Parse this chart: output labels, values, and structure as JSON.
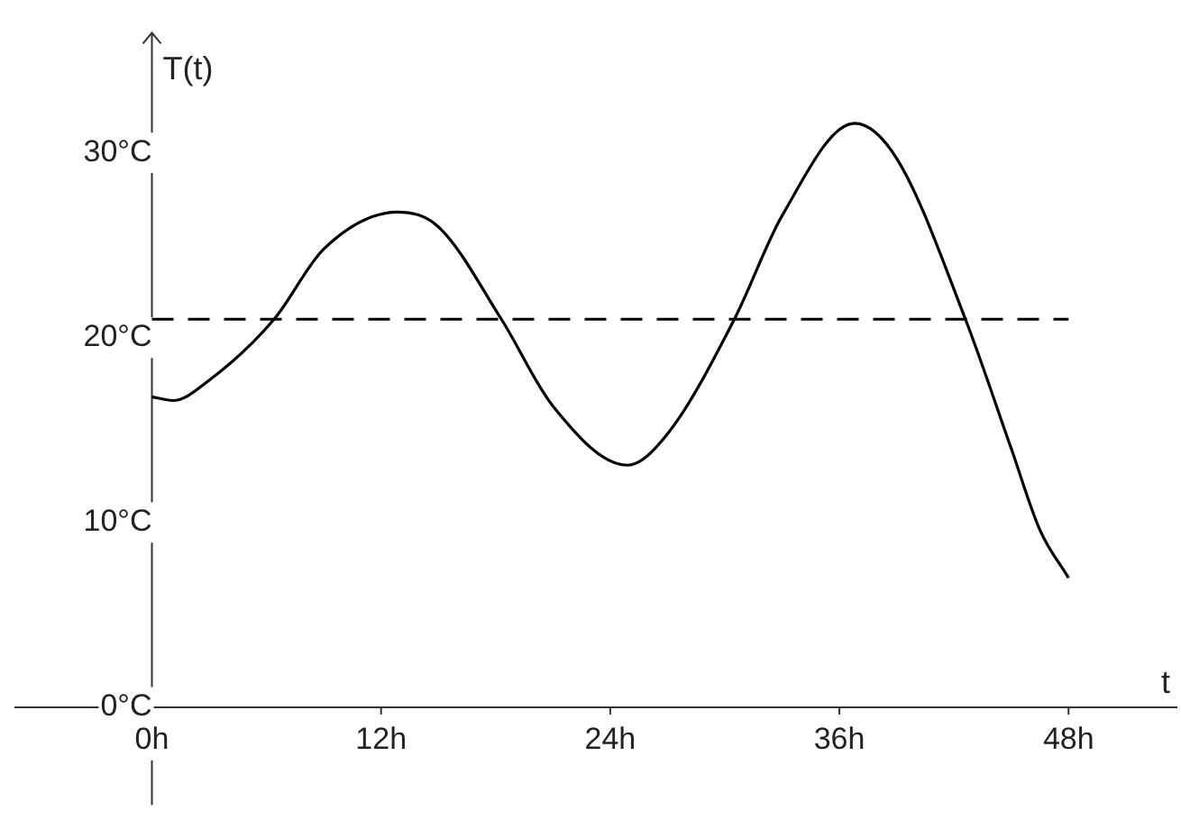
{
  "chart_data": {
    "type": "line",
    "ylabel": "T(t)",
    "xlabel": "t",
    "x": [
      0,
      1.1,
      3,
      6.4,
      9,
      12.85,
      15,
      18.3,
      21,
      24.9,
      27,
      30.5,
      33,
      36.8,
      39,
      42.6,
      45,
      46.5,
      48
    ],
    "series": [
      {
        "color": "#000000",
        "values": [
          16.8,
          16.6,
          17.7,
          21,
          24.8,
          26.8,
          26.0,
          21,
          16.3,
          13.1,
          14.8,
          21,
          26.6,
          31.6,
          29.7,
          21,
          14.0,
          9.6,
          7.0
        ]
      }
    ],
    "xlim": [
      -7.2,
      53.7
    ],
    "ylim": [
      -5.3,
      36.5
    ],
    "xticks": [
      {
        "value": 0,
        "label": "0h"
      },
      {
        "value": 12,
        "label": "12h"
      },
      {
        "value": 24,
        "label": "24h"
      },
      {
        "value": 36,
        "label": "36h"
      },
      {
        "value": 48,
        "label": "48h"
      }
    ],
    "yticks": [
      {
        "value": 0,
        "label": "0°C"
      },
      {
        "value": 10,
        "label": "10°C"
      },
      {
        "value": 20,
        "label": "20°C"
      },
      {
        "value": 30,
        "label": "30°C"
      }
    ],
    "ref_lines": [
      {
        "axis": "y",
        "value": 21,
        "line_style": "dashed",
        "color": "#000000"
      }
    ],
    "grid": false,
    "legend": false,
    "marker": "none",
    "line_style": "solid"
  }
}
